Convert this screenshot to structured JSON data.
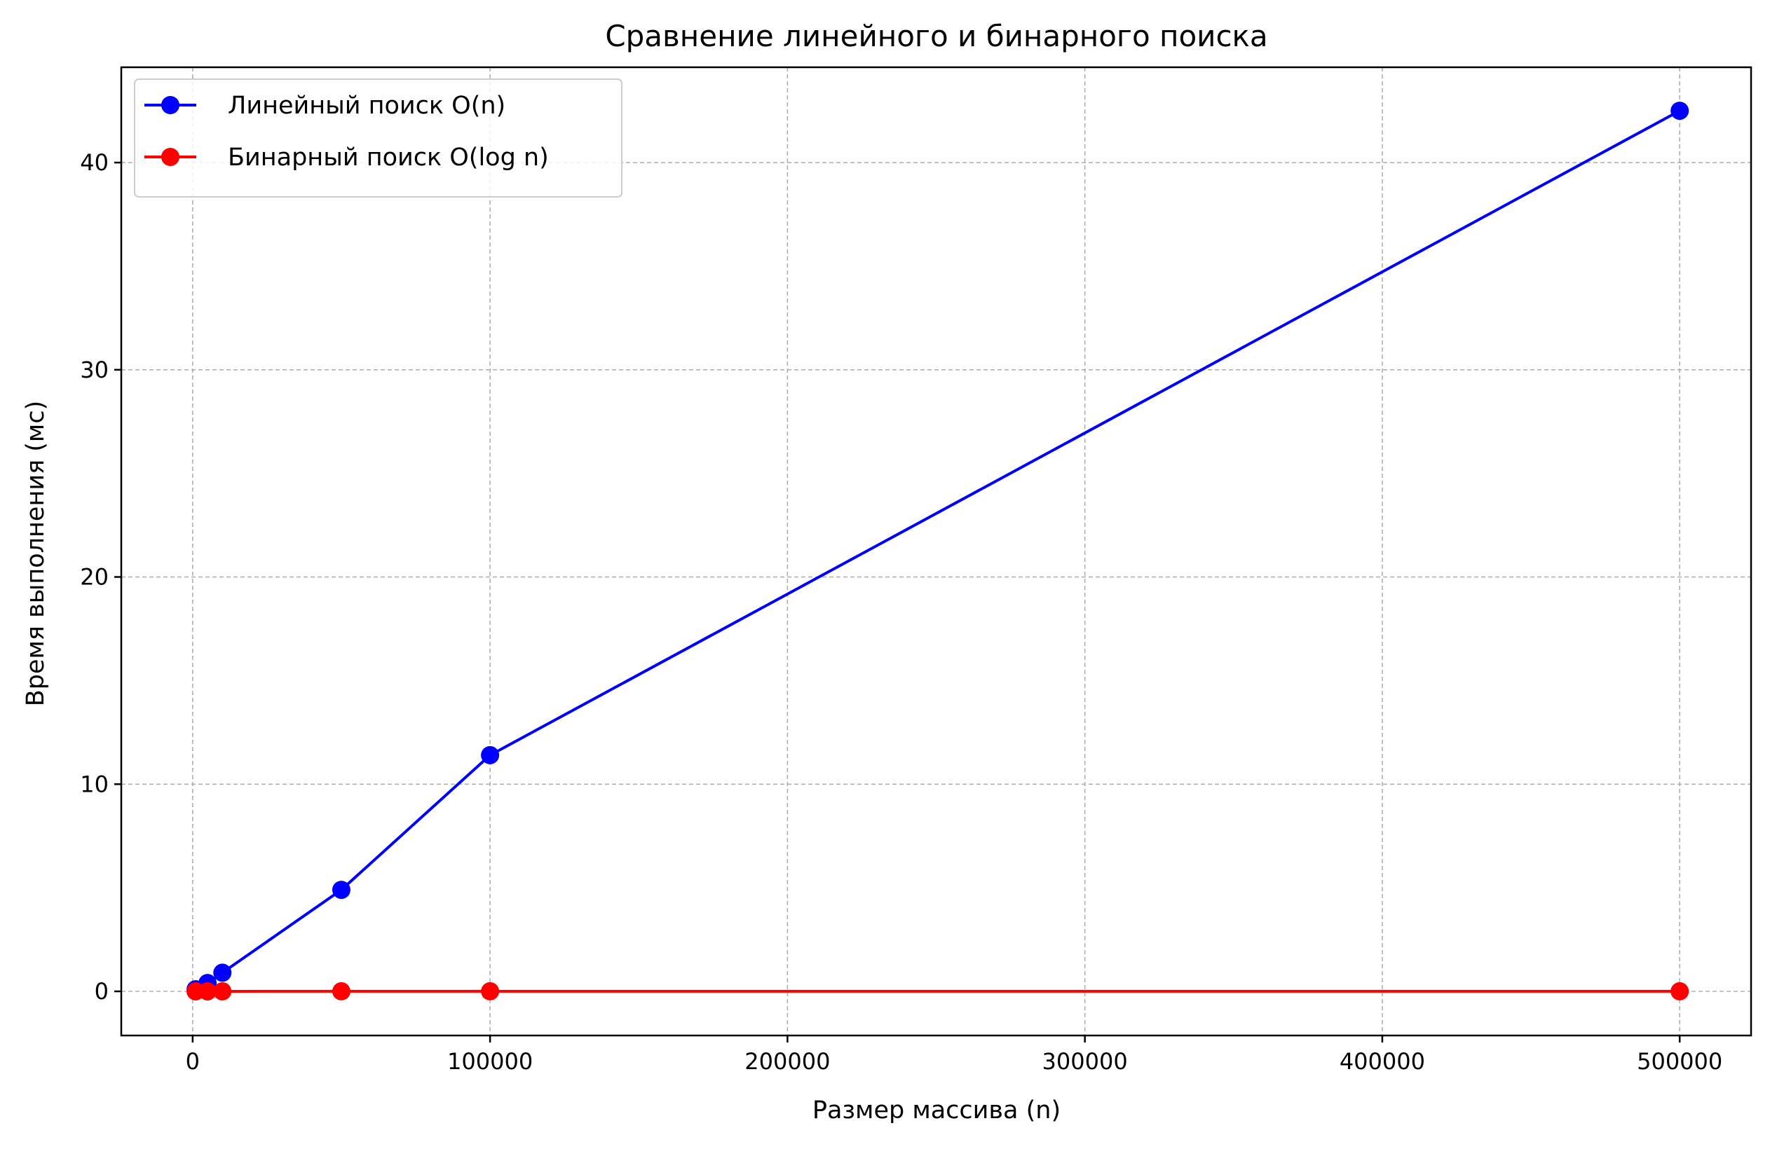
{
  "chart_data": {
    "type": "line",
    "title": "Сравнение линейного и бинарного поиска",
    "xlabel": "Размер массива (n)",
    "ylabel": "Время выполнения (мс)",
    "xlim": [
      -24000,
      524000
    ],
    "ylim": [
      -2.13,
      44.6
    ],
    "xticks": [
      {
        "value": 0,
        "label": "0"
      },
      {
        "value": 100000,
        "label": "100000"
      },
      {
        "value": 200000,
        "label": "200000"
      },
      {
        "value": 300000,
        "label": "300000"
      },
      {
        "value": 400000,
        "label": "400000"
      },
      {
        "value": 500000,
        "label": "500000"
      }
    ],
    "yticks": [
      {
        "value": 0,
        "label": "0"
      },
      {
        "value": 10,
        "label": "10"
      },
      {
        "value": 20,
        "label": "20"
      },
      {
        "value": 30,
        "label": "30"
      },
      {
        "value": 40,
        "label": "40"
      }
    ],
    "grid": true,
    "legend_position": "top-left",
    "series": [
      {
        "name": "Линейный поиск O(n)",
        "color": "#0000ff",
        "marker": "circle",
        "x": [
          1000,
          5000,
          10000,
          50000,
          100000,
          500000
        ],
        "y": [
          0.1,
          0.4,
          0.9,
          4.9,
          11.4,
          42.5
        ]
      },
      {
        "name": "Бинарный поиск O(log n)",
        "color": "#ff0000",
        "marker": "circle",
        "x": [
          1000,
          5000,
          10000,
          50000,
          100000,
          500000
        ],
        "y": [
          0.002,
          0.002,
          0.002,
          0.003,
          0.003,
          0.004
        ]
      }
    ]
  }
}
